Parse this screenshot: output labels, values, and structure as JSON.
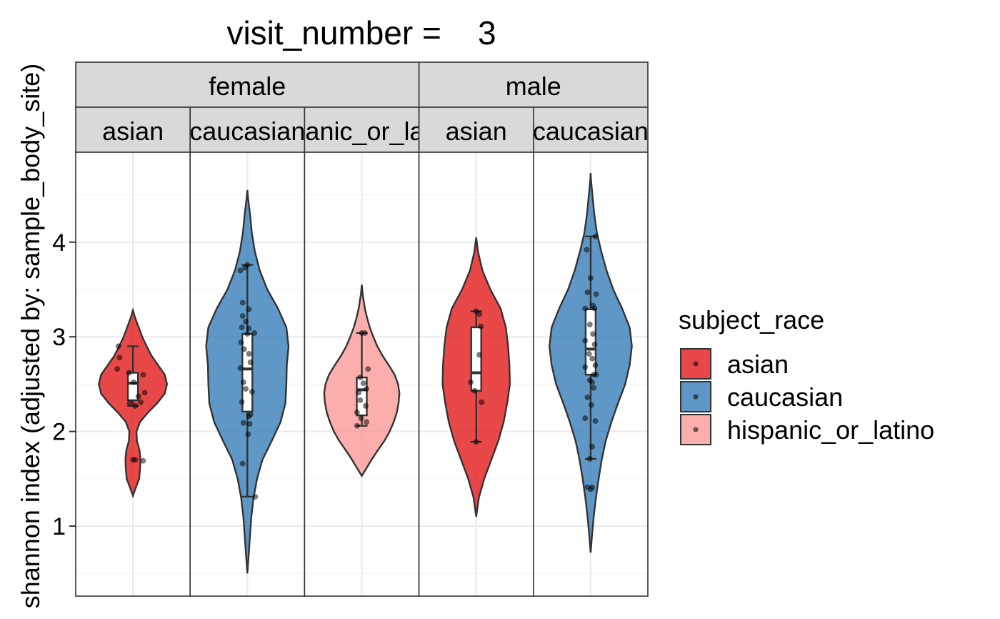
{
  "chart_data": {
    "type": "violin",
    "title": "visit_number =    3",
    "ylabel": "shannon index (adjusted by: sample_body_site)",
    "ylim": [
      0.26,
      4.95
    ],
    "yticks": [
      1,
      2,
      3,
      4
    ],
    "ytick_labels": [
      "1",
      "2",
      "3",
      "4"
    ],
    "grid": true,
    "legend": {
      "title": "subject_race",
      "placement": "right",
      "entries": [
        {
          "label": "asian",
          "color": "#e41a1c"
        },
        {
          "label": "caucasian",
          "color": "#377eb8"
        },
        {
          "label": "hispanic_or_latino",
          "color": "#fb9a99"
        }
      ]
    },
    "facet_top": [
      {
        "label": "female",
        "span": 3
      },
      {
        "label": "male",
        "span": 2
      }
    ],
    "panels": [
      {
        "sex": "female",
        "race_label": "asian",
        "race": "asian",
        "color": "#e41a1c",
        "violin": [
          [
            1.32,
            0.0
          ],
          [
            1.4,
            0.06
          ],
          [
            1.5,
            0.14
          ],
          [
            1.6,
            0.16
          ],
          [
            1.7,
            0.17
          ],
          [
            1.8,
            0.15
          ],
          [
            1.9,
            0.09
          ],
          [
            2.0,
            0.08
          ],
          [
            2.1,
            0.16
          ],
          [
            2.2,
            0.34
          ],
          [
            2.3,
            0.55
          ],
          [
            2.4,
            0.72
          ],
          [
            2.5,
            0.77
          ],
          [
            2.6,
            0.72
          ],
          [
            2.7,
            0.57
          ],
          [
            2.8,
            0.42
          ],
          [
            2.9,
            0.31
          ],
          [
            3.0,
            0.21
          ],
          [
            3.1,
            0.13
          ],
          [
            3.2,
            0.05
          ],
          [
            3.28,
            0.0
          ]
        ],
        "box": {
          "lower_whisker": 2.27,
          "q1": 2.33,
          "median": 2.51,
          "q3": 2.62,
          "upper_whisker": 2.9
        },
        "points": [
          [
            -0.37,
            2.9
          ],
          [
            -0.34,
            2.78
          ],
          [
            -0.4,
            2.66
          ],
          [
            -0.1,
            2.62
          ],
          [
            0.26,
            2.6
          ],
          [
            0.02,
            2.52
          ],
          [
            0.3,
            2.41
          ],
          [
            0.14,
            2.37
          ],
          [
            -0.08,
            2.3
          ],
          [
            0.2,
            2.31
          ],
          [
            0.06,
            2.27
          ],
          [
            0.0,
            1.7
          ],
          [
            0.06,
            1.7
          ],
          [
            0.26,
            1.69
          ]
        ]
      },
      {
        "sex": "female",
        "race_label": "caucasian",
        "race": "caucasian",
        "color": "#377eb8",
        "violin": [
          [
            0.5,
            0.0
          ],
          [
            0.7,
            0.03
          ],
          [
            0.9,
            0.06
          ],
          [
            1.1,
            0.09
          ],
          [
            1.3,
            0.14
          ],
          [
            1.5,
            0.22
          ],
          [
            1.7,
            0.34
          ],
          [
            1.9,
            0.55
          ],
          [
            2.1,
            0.75
          ],
          [
            2.3,
            0.86
          ],
          [
            2.5,
            0.88
          ],
          [
            2.7,
            0.89
          ],
          [
            2.9,
            0.93
          ],
          [
            3.1,
            0.88
          ],
          [
            3.3,
            0.69
          ],
          [
            3.5,
            0.45
          ],
          [
            3.7,
            0.28
          ],
          [
            3.9,
            0.17
          ],
          [
            4.1,
            0.1
          ],
          [
            4.3,
            0.06
          ],
          [
            4.45,
            0.02
          ],
          [
            4.55,
            0.0
          ]
        ],
        "box": {
          "lower_whisker": 1.31,
          "q1": 2.21,
          "median": 2.66,
          "q3": 3.03,
          "upper_whisker": 3.76
        },
        "points": [
          [
            -0.18,
            3.7
          ],
          [
            -0.06,
            3.73
          ],
          [
            0.0,
            3.76
          ],
          [
            -0.12,
            3.36
          ],
          [
            0.04,
            3.29
          ],
          [
            -0.12,
            3.22
          ],
          [
            -0.04,
            3.16
          ],
          [
            -0.14,
            3.1
          ],
          [
            0.04,
            3.09
          ],
          [
            0.18,
            3.04
          ],
          [
            0.0,
            3.03
          ],
          [
            -0.16,
            2.94
          ],
          [
            -0.08,
            2.87
          ],
          [
            0.04,
            2.82
          ],
          [
            -0.18,
            2.67
          ],
          [
            0.08,
            2.73
          ],
          [
            -0.1,
            2.52
          ],
          [
            -0.04,
            2.45
          ],
          [
            0.12,
            2.42
          ],
          [
            -0.14,
            2.31
          ],
          [
            0.04,
            2.16
          ],
          [
            0.08,
            2.18
          ],
          [
            -0.1,
            2.09
          ],
          [
            0.06,
            2.08
          ],
          [
            0.02,
            1.97
          ],
          [
            -0.12,
            1.66
          ],
          [
            0.2,
            1.31
          ]
        ]
      },
      {
        "sex": "female",
        "race_label": "hispanic_or_latino",
        "race": "hispanic_or_latino",
        "color": "#fb9a99",
        "violin": [
          [
            1.53,
            0.0
          ],
          [
            1.6,
            0.09
          ],
          [
            1.7,
            0.22
          ],
          [
            1.8,
            0.36
          ],
          [
            1.9,
            0.51
          ],
          [
            2.0,
            0.63
          ],
          [
            2.1,
            0.72
          ],
          [
            2.2,
            0.79
          ],
          [
            2.3,
            0.83
          ],
          [
            2.4,
            0.85
          ],
          [
            2.5,
            0.82
          ],
          [
            2.6,
            0.74
          ],
          [
            2.7,
            0.61
          ],
          [
            2.8,
            0.47
          ],
          [
            2.9,
            0.35
          ],
          [
            3.0,
            0.26
          ],
          [
            3.1,
            0.18
          ],
          [
            3.2,
            0.12
          ],
          [
            3.3,
            0.07
          ],
          [
            3.45,
            0.02
          ],
          [
            3.55,
            0.0
          ]
        ],
        "box": {
          "lower_whisker": 2.06,
          "q1": 2.17,
          "median": 2.44,
          "q3": 2.57,
          "upper_whisker": 3.04
        },
        "points": [
          [
            0.0,
            3.04
          ],
          [
            0.08,
            3.04
          ],
          [
            0.16,
            2.66
          ],
          [
            -0.04,
            2.57
          ],
          [
            0.04,
            2.51
          ],
          [
            0.12,
            2.45
          ],
          [
            -0.08,
            2.41
          ],
          [
            -0.04,
            2.33
          ],
          [
            0.1,
            2.27
          ],
          [
            -0.12,
            2.2
          ],
          [
            -0.02,
            2.14
          ],
          [
            0.12,
            2.1
          ],
          [
            -0.12,
            2.06
          ]
        ]
      },
      {
        "sex": "male",
        "race_label": "asian",
        "race": "asian",
        "color": "#e41a1c",
        "violin": [
          [
            1.1,
            0.0
          ],
          [
            1.3,
            0.06
          ],
          [
            1.5,
            0.18
          ],
          [
            1.7,
            0.34
          ],
          [
            1.9,
            0.5
          ],
          [
            2.1,
            0.62
          ],
          [
            2.3,
            0.7
          ],
          [
            2.5,
            0.76
          ],
          [
            2.7,
            0.75
          ],
          [
            2.9,
            0.72
          ],
          [
            3.1,
            0.67
          ],
          [
            3.3,
            0.55
          ],
          [
            3.5,
            0.32
          ],
          [
            3.7,
            0.14
          ],
          [
            3.9,
            0.04
          ],
          [
            4.05,
            0.0
          ]
        ],
        "box": {
          "lower_whisker": 1.89,
          "q1": 2.43,
          "median": 2.62,
          "q3": 3.1,
          "upper_whisker": 3.27
        },
        "points": [
          [
            0.0,
            3.27
          ],
          [
            0.08,
            3.24
          ],
          [
            0.12,
            3.11
          ],
          [
            0.08,
            2.81
          ],
          [
            -0.14,
            2.52
          ],
          [
            -0.04,
            2.43
          ],
          [
            0.14,
            2.31
          ],
          [
            0.0,
            1.89
          ]
        ]
      },
      {
        "sex": "male",
        "race_label": "caucasian",
        "race": "caucasian",
        "color": "#377eb8",
        "violin": [
          [
            0.72,
            0.0
          ],
          [
            0.9,
            0.03
          ],
          [
            1.1,
            0.07
          ],
          [
            1.3,
            0.12
          ],
          [
            1.5,
            0.18
          ],
          [
            1.7,
            0.25
          ],
          [
            1.9,
            0.34
          ],
          [
            2.1,
            0.47
          ],
          [
            2.3,
            0.62
          ],
          [
            2.5,
            0.78
          ],
          [
            2.7,
            0.88
          ],
          [
            2.9,
            0.93
          ],
          [
            3.1,
            0.88
          ],
          [
            3.3,
            0.71
          ],
          [
            3.5,
            0.51
          ],
          [
            3.7,
            0.36
          ],
          [
            3.9,
            0.24
          ],
          [
            4.1,
            0.14
          ],
          [
            4.3,
            0.08
          ],
          [
            4.5,
            0.04
          ],
          [
            4.65,
            0.01
          ],
          [
            4.73,
            0.0
          ]
        ],
        "box": {
          "lower_whisker": 1.71,
          "q1": 2.6,
          "median": 2.87,
          "q3": 3.29,
          "upper_whisker": 4.06
        },
        "points": [
          [
            0.12,
            4.06
          ],
          [
            -0.1,
            3.92
          ],
          [
            0.0,
            3.62
          ],
          [
            -0.08,
            3.47
          ],
          [
            0.14,
            3.45
          ],
          [
            -0.14,
            3.3
          ],
          [
            0.06,
            3.33
          ],
          [
            0.1,
            3.3
          ],
          [
            -0.02,
            3.13
          ],
          [
            0.06,
            3.03
          ],
          [
            -0.14,
            2.96
          ],
          [
            0.1,
            2.92
          ],
          [
            -0.04,
            2.82
          ],
          [
            0.04,
            2.77
          ],
          [
            -0.14,
            2.68
          ],
          [
            0.12,
            2.7
          ],
          [
            0.08,
            2.6
          ],
          [
            0.14,
            2.6
          ],
          [
            -0.02,
            2.54
          ],
          [
            0.04,
            2.52
          ],
          [
            0.08,
            2.46
          ],
          [
            -0.08,
            2.36
          ],
          [
            0.02,
            2.28
          ],
          [
            -0.14,
            2.14
          ],
          [
            0.12,
            2.11
          ],
          [
            0.04,
            1.84
          ],
          [
            -0.02,
            1.71
          ],
          [
            0.04,
            1.41
          ],
          [
            -0.08,
            1.41
          ],
          [
            0.0,
            1.39
          ]
        ]
      }
    ]
  }
}
